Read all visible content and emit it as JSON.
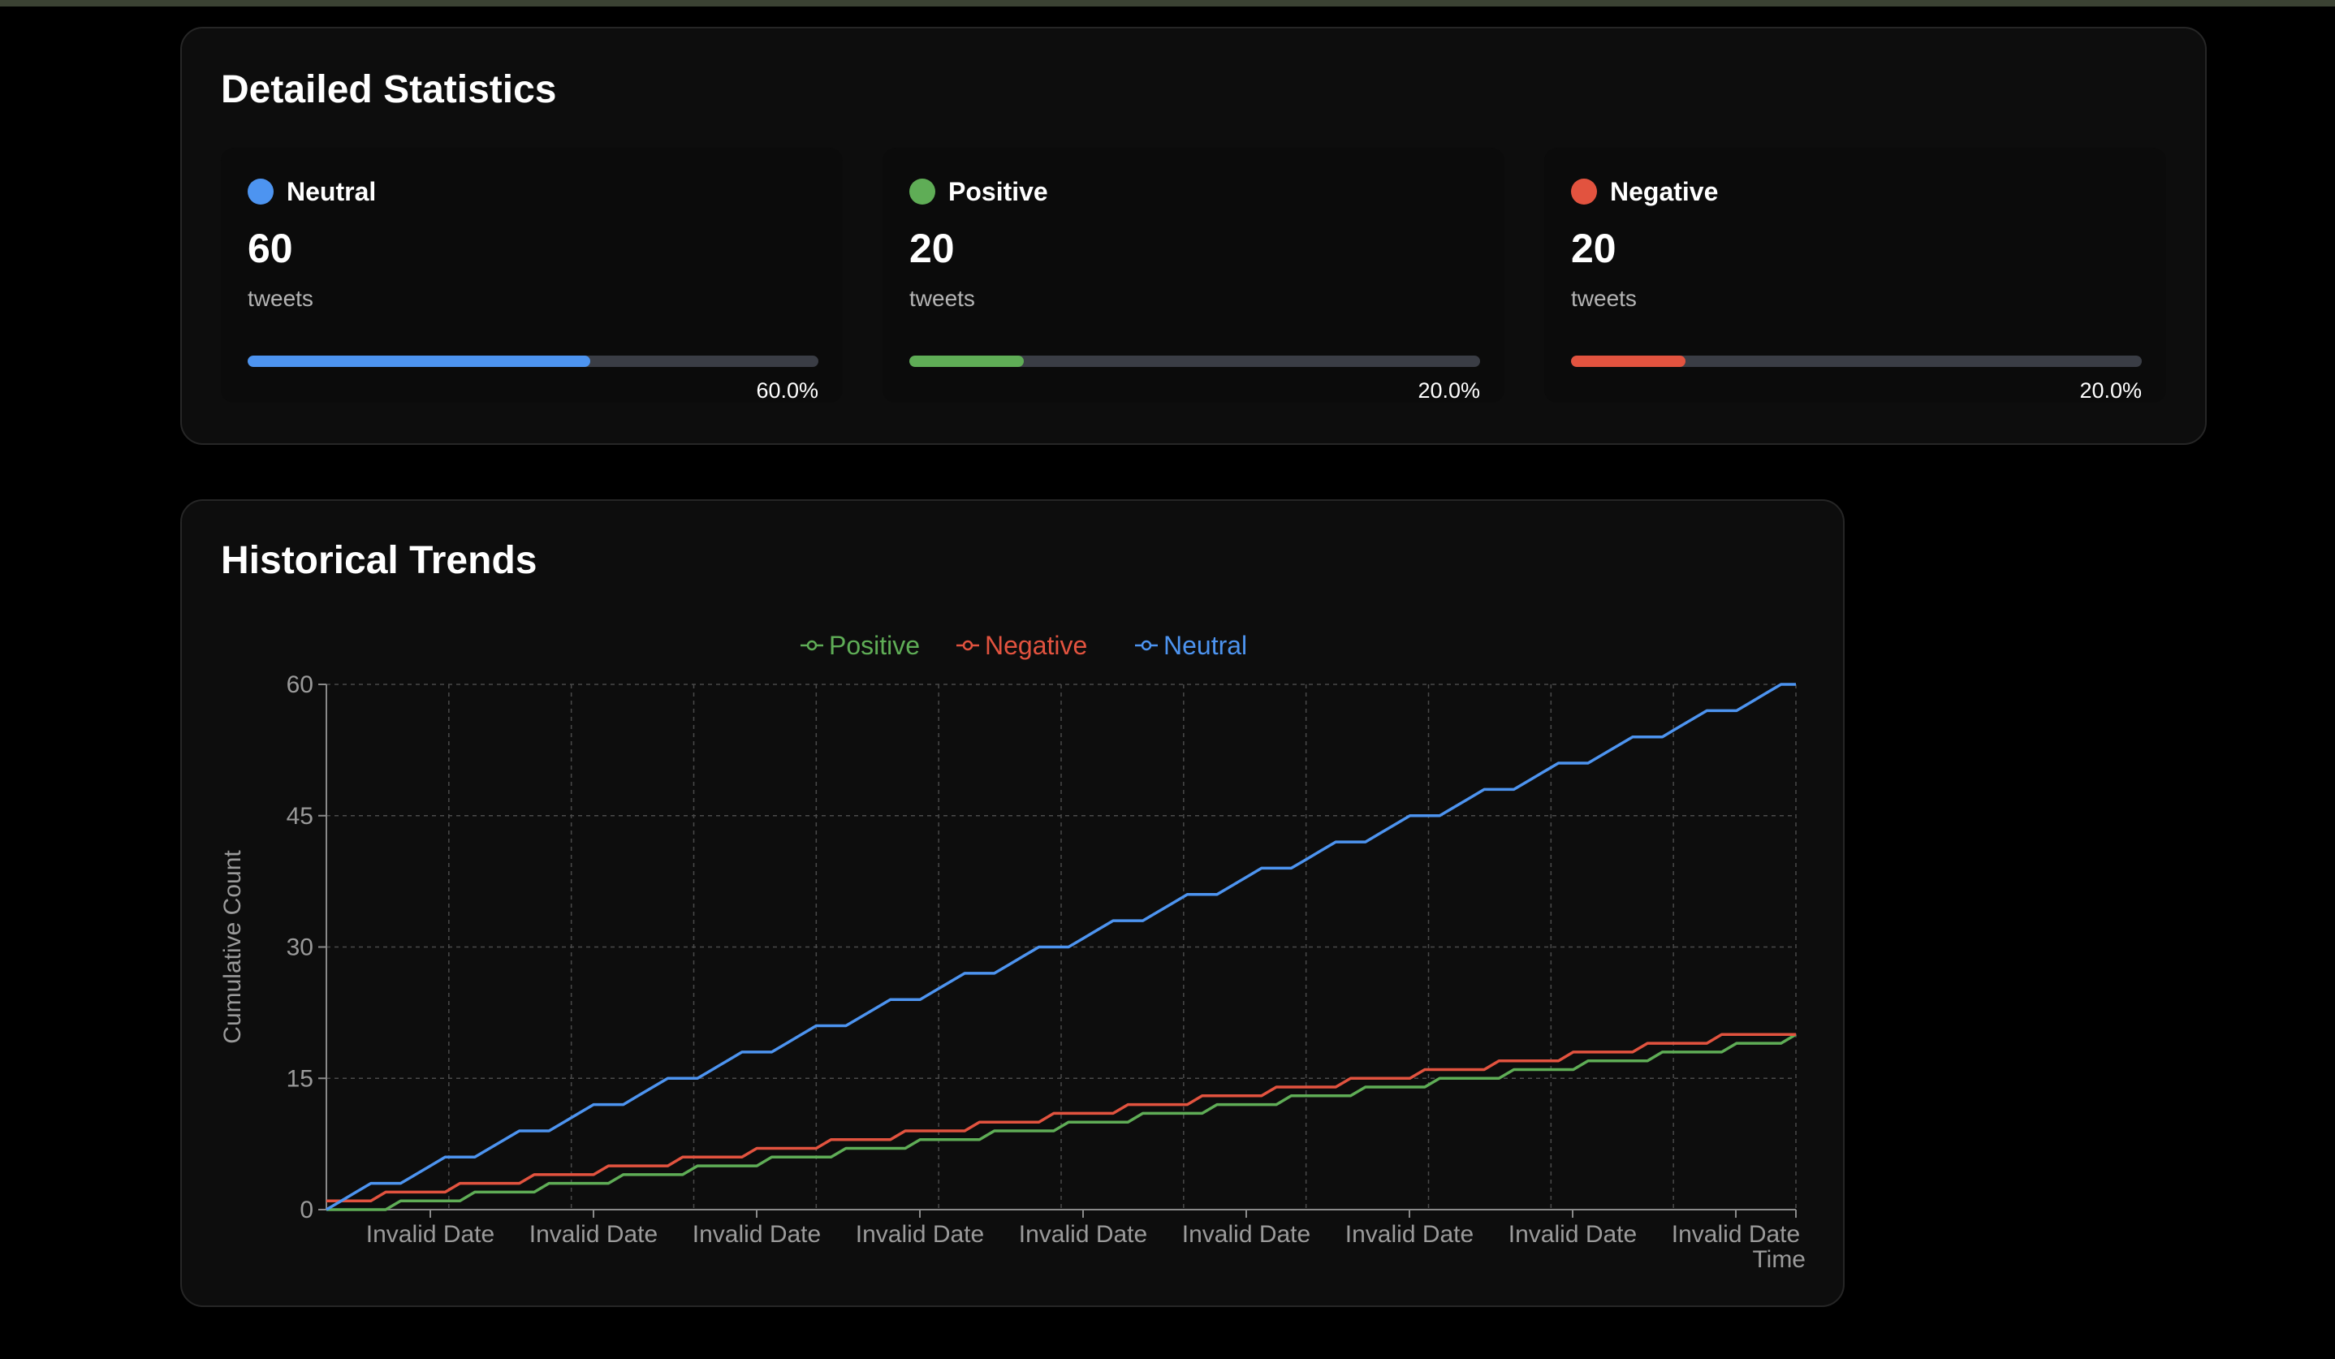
{
  "stats": {
    "title": "Detailed Statistics",
    "cards": [
      {
        "name": "Neutral",
        "count": "60",
        "unit": "tweets",
        "percent_label": "60.0%",
        "fraction": 0.6,
        "color": "#4d94f0"
      },
      {
        "name": "Positive",
        "count": "20",
        "unit": "tweets",
        "percent_label": "20.0%",
        "fraction": 0.2,
        "color": "#5fad56"
      },
      {
        "name": "Negative",
        "count": "20",
        "unit": "tweets",
        "percent_label": "20.0%",
        "fraction": 0.2,
        "color": "#e2533f"
      }
    ]
  },
  "trends": {
    "title": "Historical Trends"
  },
  "chart_data": {
    "type": "line",
    "title": "",
    "xlabel": "Time",
    "ylabel": "Cumulative Count",
    "ylim": [
      0,
      60
    ],
    "yticks": [
      0,
      15,
      30,
      45,
      60
    ],
    "x_tick_labels": [
      "Invalid Date",
      "Invalid Date",
      "Invalid Date",
      "Invalid Date",
      "Invalid Date",
      "Invalid Date",
      "Invalid Date",
      "Invalid Date",
      "Invalid Date"
    ],
    "grid": true,
    "legend_position": "top",
    "x": [
      0,
      1,
      2,
      3,
      4,
      5,
      6,
      7,
      8,
      9,
      10,
      11,
      12,
      13,
      14,
      15,
      16,
      17,
      18,
      19,
      20,
      21,
      22,
      23,
      24,
      25,
      26,
      27,
      28,
      29,
      30,
      31,
      32,
      33,
      34,
      35,
      36,
      37,
      38,
      39,
      40,
      41,
      42,
      43,
      44,
      45,
      46,
      47,
      48,
      49,
      50,
      51,
      52,
      53,
      54,
      55,
      56,
      57,
      58,
      59,
      60,
      61,
      62,
      63,
      64,
      65,
      66,
      67,
      68,
      69,
      70,
      71,
      72,
      73,
      74,
      75,
      76,
      77,
      78,
      79,
      80,
      81,
      82,
      83,
      84,
      85,
      86,
      87,
      88,
      89,
      90,
      91,
      92,
      93,
      94,
      95,
      96,
      97,
      98,
      99
    ],
    "series": [
      {
        "name": "Positive",
        "color": "#5fad56",
        "values": [
          0,
          0,
          0,
          0,
          0,
          1,
          1,
          1,
          1,
          1,
          2,
          2,
          2,
          2,
          2,
          3,
          3,
          3,
          3,
          3,
          4,
          4,
          4,
          4,
          4,
          5,
          5,
          5,
          5,
          5,
          6,
          6,
          6,
          6,
          6,
          7,
          7,
          7,
          7,
          7,
          8,
          8,
          8,
          8,
          8,
          9,
          9,
          9,
          9,
          9,
          10,
          10,
          10,
          10,
          10,
          11,
          11,
          11,
          11,
          11,
          12,
          12,
          12,
          12,
          12,
          13,
          13,
          13,
          13,
          13,
          14,
          14,
          14,
          14,
          14,
          15,
          15,
          15,
          15,
          15,
          16,
          16,
          16,
          16,
          16,
          17,
          17,
          17,
          17,
          17,
          18,
          18,
          18,
          18,
          18,
          19,
          19,
          19,
          19,
          20
        ]
      },
      {
        "name": "Negative",
        "color": "#e2533f",
        "values": [
          1,
          1,
          1,
          1,
          2,
          2,
          2,
          2,
          2,
          3,
          3,
          3,
          3,
          3,
          4,
          4,
          4,
          4,
          4,
          5,
          5,
          5,
          5,
          5,
          6,
          6,
          6,
          6,
          6,
          7,
          7,
          7,
          7,
          7,
          8,
          8,
          8,
          8,
          8,
          9,
          9,
          9,
          9,
          9,
          10,
          10,
          10,
          10,
          10,
          11,
          11,
          11,
          11,
          11,
          12,
          12,
          12,
          12,
          12,
          13,
          13,
          13,
          13,
          13,
          14,
          14,
          14,
          14,
          14,
          15,
          15,
          15,
          15,
          15,
          16,
          16,
          16,
          16,
          16,
          17,
          17,
          17,
          17,
          17,
          18,
          18,
          18,
          18,
          18,
          19,
          19,
          19,
          19,
          19,
          20,
          20,
          20,
          20,
          20,
          20
        ]
      },
      {
        "name": "Neutral",
        "color": "#4d94f0",
        "values": [
          0,
          1,
          2,
          3,
          3,
          3,
          4,
          5,
          6,
          6,
          6,
          7,
          8,
          9,
          9,
          9,
          10,
          11,
          12,
          12,
          12,
          13,
          14,
          15,
          15,
          15,
          16,
          17,
          18,
          18,
          18,
          19,
          20,
          21,
          21,
          21,
          22,
          23,
          24,
          24,
          24,
          25,
          26,
          27,
          27,
          27,
          28,
          29,
          30,
          30,
          30,
          31,
          32,
          33,
          33,
          33,
          34,
          35,
          36,
          36,
          36,
          37,
          38,
          39,
          39,
          39,
          40,
          41,
          42,
          42,
          42,
          43,
          44,
          45,
          45,
          45,
          46,
          47,
          48,
          48,
          48,
          49,
          50,
          51,
          51,
          51,
          52,
          53,
          54,
          54,
          54,
          55,
          56,
          57,
          57,
          57,
          58,
          59,
          60,
          60
        ]
      }
    ]
  }
}
